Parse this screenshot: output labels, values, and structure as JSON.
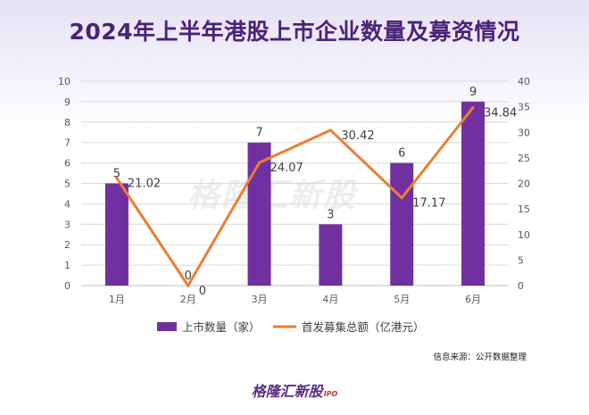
{
  "title": "2024年上半年港股上市企业数量及募资情况",
  "watermark": "格隆汇新股",
  "source": "信息来源：公开数据整理",
  "footer": {
    "logo": "格隆汇新股",
    "ipo": "IPO"
  },
  "colors": {
    "bar": "#7030a0",
    "line": "#ed7d31",
    "title": "#4a2378"
  },
  "chart_data": {
    "type": "bar+line",
    "categories": [
      "1月",
      "2月",
      "3月",
      "4月",
      "5月",
      "6月"
    ],
    "series": [
      {
        "name": "上市数量（家）",
        "type": "bar",
        "axis": "left",
        "values": [
          5,
          0,
          7,
          3,
          6,
          9
        ],
        "labels": [
          "5",
          "0",
          "7",
          "3",
          "6",
          "9"
        ]
      },
      {
        "name": "首发募集总额（亿港元）",
        "type": "line",
        "axis": "right",
        "values": [
          21.02,
          0,
          24.07,
          30.42,
          17.17,
          34.84
        ],
        "labels": [
          "21.02",
          "0",
          "24.07",
          "30.42",
          "17.17",
          "34.84"
        ]
      }
    ],
    "y_left": {
      "min": 0,
      "max": 10,
      "ticks": [
        "0",
        "1",
        "2",
        "3",
        "4",
        "5",
        "6",
        "7",
        "8",
        "9",
        "10"
      ]
    },
    "y_right": {
      "min": 0,
      "max": 40,
      "ticks": [
        "0",
        "5",
        "10",
        "15",
        "20",
        "25",
        "30",
        "35",
        "40"
      ]
    },
    "grid": true,
    "legend_position": "bottom"
  }
}
